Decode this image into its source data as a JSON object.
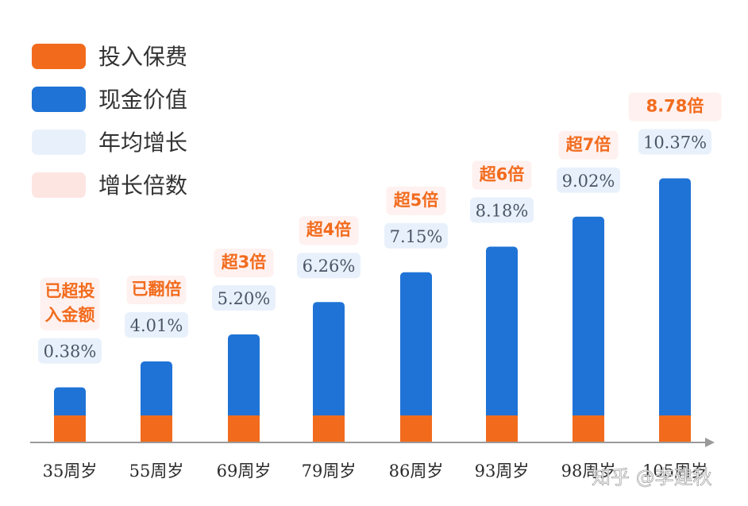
{
  "chart_data": {
    "type": "bar",
    "stacked": true,
    "categories": [
      "35周岁",
      "55周岁",
      "69周岁",
      "79周岁",
      "86周岁",
      "93周岁",
      "98周岁",
      "105周岁"
    ],
    "series": [
      {
        "name": "投入保费",
        "values": [
          1,
          1,
          1,
          1,
          1,
          1,
          1,
          1
        ],
        "color": "#f26b1d"
      },
      {
        "name": "现金价值",
        "values": [
          1.04,
          2,
          3,
          4.2,
          5.3,
          6.25,
          7.36,
          8.78
        ],
        "color": "#1f73d6"
      }
    ],
    "annual_growth": [
      "0.38%",
      "4.01%",
      "5.20%",
      "6.26%",
      "7.15%",
      "8.18%",
      "9.02%",
      "10.37%"
    ],
    "multiples": [
      [
        "已超投",
        "入金额"
      ],
      [
        "已翻倍"
      ],
      [
        "超3倍"
      ],
      [
        "超4倍"
      ],
      [
        "超5倍"
      ],
      [
        "超6倍"
      ],
      [
        "超7倍"
      ],
      [
        "8.78倍"
      ]
    ],
    "legend": [
      {
        "label": "投入保费",
        "color": "#f26b1d"
      },
      {
        "label": "现金价值",
        "color": "#1f73d6"
      },
      {
        "label": "年均增长",
        "color": "#e8f1fb"
      },
      {
        "label": "增长倍数",
        "color": "#fde5e1"
      }
    ],
    "ylim": [
      0,
      10
    ],
    "title": "",
    "xlabel": "",
    "ylabel": ""
  },
  "watermark": "知乎 @李建秋"
}
